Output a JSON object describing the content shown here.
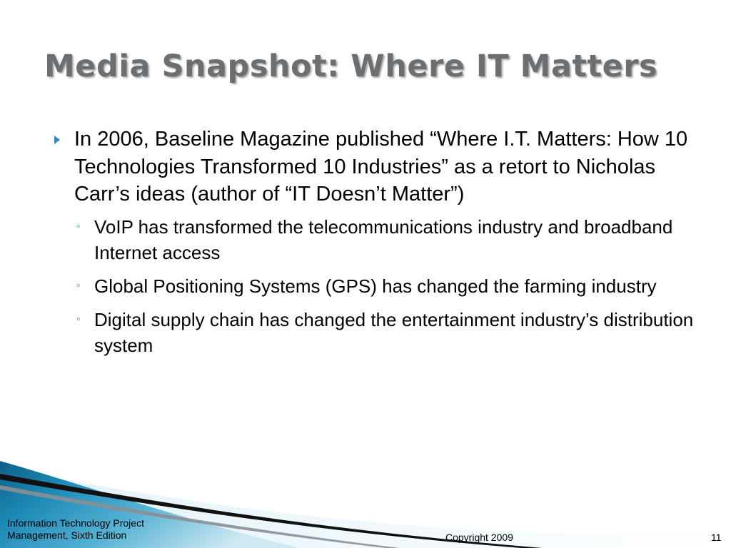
{
  "slide": {
    "title": "Media Snapshot: Where IT Matters",
    "bullets": [
      {
        "text": "In 2006, Baseline Magazine published “Where I.T. Matters: How 10 Technologies Transformed 10 Industries” as a retort to Nicholas Carr’s ideas (author of “IT Doesn’t Matter”)",
        "sub": [
          "VoIP has transformed the telecommunications industry and broadband Internet access",
          "Global Positioning Systems (GPS) has changed the farming industry",
          "Digital supply chain has changed the entertainment industry’s distribution system"
        ]
      }
    ]
  },
  "footer": {
    "left": "Information Technology Project Management, Sixth Edition",
    "center": "Copyright 2009",
    "page_number": "11"
  },
  "colors": {
    "title": "#6b6f72",
    "bullet_accent": "#2a8fc0",
    "footer_blue": "#1b7fa8"
  }
}
